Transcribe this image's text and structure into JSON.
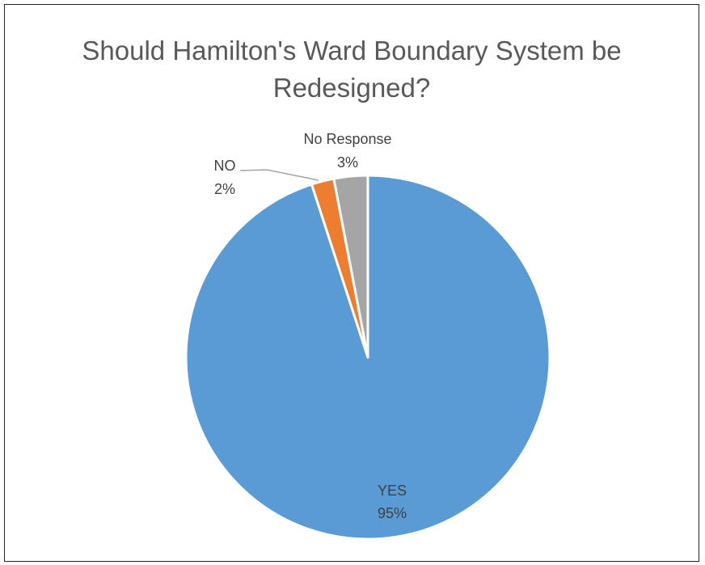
{
  "chart_data": {
    "type": "pie",
    "title_lines": [
      "Should Hamilton's Ward Boundary System be",
      "Redesigned?"
    ],
    "slices": [
      {
        "label": "YES",
        "value": 95,
        "percent_label": "95%",
        "color": "#5B9BD5"
      },
      {
        "label": "NO",
        "value": 2,
        "percent_label": "2%",
        "color": "#ED7D31"
      },
      {
        "label": "No Response",
        "value": 3,
        "percent_label": "3%",
        "color": "#A5A5A5"
      }
    ],
    "start_angle_deg": 0,
    "direction": "clockwise",
    "legend": "none"
  }
}
